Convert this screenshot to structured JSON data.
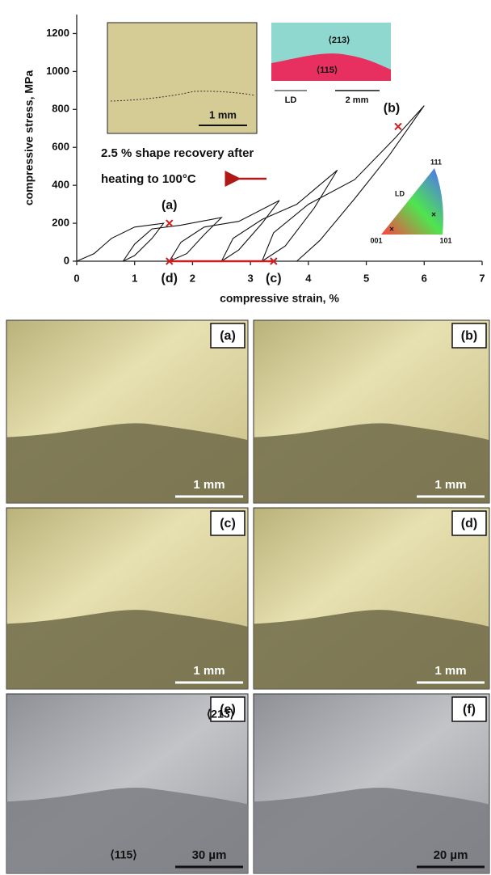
{
  "chart_data": {
    "type": "line",
    "xlabel": "compressive strain, %",
    "ylabel": "compressive stress, MPa",
    "xlim": [
      0,
      7
    ],
    "ylim": [
      0,
      1300
    ],
    "xticks": [
      0,
      1,
      2,
      3,
      4,
      5,
      6,
      7
    ],
    "yticks": [
      0,
      200,
      400,
      600,
      800,
      1000,
      1200
    ],
    "series": [
      {
        "color": "#111111",
        "x": [
          0,
          0.3,
          0.6,
          1.0,
          1.5,
          1.3,
          1.0,
          0.8
        ],
        "values": [
          0,
          40,
          120,
          180,
          200,
          120,
          30,
          0
        ]
      },
      {
        "color": "#111111",
        "x": [
          0.8,
          1.0,
          1.3,
          1.8,
          2.5,
          2.2,
          1.9,
          1.6
        ],
        "values": [
          0,
          90,
          170,
          190,
          230,
          140,
          40,
          0
        ]
      },
      {
        "color": "#111111",
        "x": [
          1.6,
          1.8,
          2.2,
          2.8,
          3.5,
          3.2,
          2.8,
          2.5
        ],
        "values": [
          0,
          100,
          180,
          210,
          320,
          200,
          60,
          0
        ]
      },
      {
        "color": "#111111",
        "x": [
          2.5,
          2.7,
          3.2,
          3.8,
          4.5,
          4.1,
          3.6,
          3.2
        ],
        "values": [
          0,
          120,
          220,
          300,
          480,
          280,
          80,
          0
        ]
      },
      {
        "color": "#111111",
        "x": [
          3.2,
          3.4,
          4.0,
          4.8,
          5.5,
          6.0,
          5.4,
          4.8,
          4.2,
          3.8
        ],
        "values": [
          0,
          150,
          300,
          430,
          650,
          820,
          560,
          330,
          110,
          0
        ]
      }
    ],
    "markers": [
      {
        "label": "(a)",
        "x": 1.6,
        "y": 200
      },
      {
        "label": "(b)",
        "x": 5.55,
        "y": 710
      },
      {
        "label": "(c)",
        "x": 3.4,
        "y": 0
      },
      {
        "label": "(d)",
        "x": 1.6,
        "y": 0
      }
    ],
    "marker_color": "#cc1f1f",
    "annotations": [
      "2.5 % shape recovery after",
      "heating to 100°C"
    ]
  },
  "insets": {
    "optical_scale": "1 mm",
    "ebsd_grains": [
      "⟨213⟩",
      "⟨115⟩"
    ],
    "ld": "LD",
    "ebsd_scale": "2 mm",
    "triangle": {
      "corners": [
        "111",
        "001",
        "101"
      ],
      "direction": "LD"
    }
  },
  "panels": [
    {
      "label": "(a)",
      "scale": "1 mm"
    },
    {
      "label": "(b)",
      "scale": "1 mm"
    },
    {
      "label": "(c)",
      "scale": "1 mm"
    },
    {
      "label": "(d)",
      "scale": "1 mm"
    },
    {
      "label": "(e)",
      "scale": "30 µm",
      "grains": [
        "⟨213⟩",
        "⟨115⟩"
      ]
    },
    {
      "label": "(f)",
      "scale": "20 µm"
    }
  ]
}
